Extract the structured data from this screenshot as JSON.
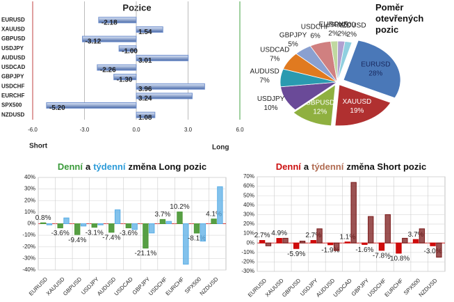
{
  "chart_data": [
    {
      "type": "hbar",
      "title": "Pozice",
      "categories": [
        "EURUSD",
        "XAUUSD",
        "GBPUSD",
        "USDJPY",
        "AUDUSD",
        "USDCAD",
        "GBPJPY",
        "USDCHF",
        "EURCHF",
        "SPX500",
        "NZDUSD"
      ],
      "values": [
        -2.18,
        1.54,
        -3.12,
        -1.0,
        3.01,
        -2.26,
        -1.3,
        3.96,
        3.24,
        -5.2,
        1.08
      ],
      "value_labels": [
        "-2.18",
        "1.54",
        "-3.12",
        "-1.00",
        "3.01",
        "-2.26",
        "-1.30",
        "3.96",
        "3.24",
        "-5.20",
        "1.08"
      ],
      "color": "#6f8fcc",
      "xlim": [
        -6,
        6
      ],
      "xticks": [
        {
          "value": -6,
          "label": "-6.0"
        },
        {
          "value": -3,
          "label": "-3.0"
        },
        {
          "value": 0,
          "label": "0.0"
        },
        {
          "value": 3,
          "label": "3.0"
        },
        {
          "value": 6,
          "label": "6.0"
        }
      ],
      "annotations": [
        "Short",
        "Long"
      ]
    },
    {
      "type": "pie",
      "title": "Poměr otevřených pozic",
      "categories": [
        "EURUSD",
        "XAUUSD",
        "GBPUSD",
        "USDJPY",
        "AUDUSD",
        "USDCAD",
        "GBPJPY",
        "USDCHF",
        "EURCHF",
        "SPX500",
        "NZDUSD"
      ],
      "values": [
        28,
        19,
        12,
        10,
        7,
        7,
        5,
        6,
        2,
        2,
        2
      ],
      "value_labels": [
        "28%",
        "19%",
        "12%",
        "10%",
        "7%",
        "7%",
        "5%",
        "6%",
        "2%",
        "2%",
        "2%"
      ],
      "colors": [
        "#4a78b8",
        "#b03030",
        "#8fb040",
        "#6a4a98",
        "#2a9ab0",
        "#e07a20",
        "#8aa0d0",
        "#d08080",
        "#c0d8a0",
        "#b0a0d0",
        "#90d0e0"
      ]
    },
    {
      "type": "bar",
      "title": [
        "Denní",
        "a",
        "týdenní",
        "změna Long pozic"
      ],
      "title_colors": [
        "#3a9a3a",
        "#111",
        "#2a9ad8",
        "#111"
      ],
      "categories": [
        "EURUSD",
        "XAUUSD",
        "GBPUSD",
        "USDJPY",
        "AUDUSD",
        "USDCAD",
        "GBPJPY",
        "USDCHF",
        "EURCHF",
        "SPX500",
        "NZDUSD"
      ],
      "series": [
        {
          "color": "#4e9a3a",
          "values": [
            0.8,
            -3.6,
            -9.4,
            -3.1,
            -7.4,
            -3.6,
            -21.1,
            3.7,
            10.2,
            -8.1,
            4.1
          ],
          "value_labels": [
            "0.8%",
            "-3.6%",
            "-9.4%",
            "-3.1%",
            "-7.4%",
            "-3.6%",
            "-21.1%",
            "3.7%",
            "10.2%",
            "-8.1%",
            "4.1%"
          ]
        },
        {
          "color": "#5aaee6",
          "values": [
            -1,
            5,
            -2,
            -1,
            12,
            -5,
            -8,
            2,
            -35,
            -15,
            32
          ]
        }
      ],
      "ylim": [
        -40,
        40
      ],
      "yticks": [
        {
          "value": -40,
          "label": "-40%"
        },
        {
          "value": -30,
          "label": "-30%"
        },
        {
          "value": -20,
          "label": "-20%"
        },
        {
          "value": -10,
          "label": "-10%"
        },
        {
          "value": 0,
          "label": "0%"
        },
        {
          "value": 10,
          "label": "10%"
        },
        {
          "value": 20,
          "label": "20%"
        },
        {
          "value": 30,
          "label": "30%"
        },
        {
          "value": 40,
          "label": "40%"
        }
      ]
    },
    {
      "type": "bar",
      "title": [
        "Denní",
        "a",
        "týdenní",
        "změna Short pozic"
      ],
      "title_colors": [
        "#cc1010",
        "#111",
        "#b06a50",
        "#111"
      ],
      "categories": [
        "EURUSD",
        "XAUUSD",
        "GBPUSD",
        "USDJPY",
        "AUDUSD",
        "USDCAD",
        "GBPJPY",
        "USDCHF",
        "EURCHF",
        "SPX500",
        "NZDUSD"
      ],
      "series": [
        {
          "color": "#cc0000",
          "values": [
            2.7,
            4.9,
            -5.9,
            2.7,
            -1.9,
            1.1,
            -1.6,
            -7.8,
            -10.8,
            3.7,
            -3.0
          ],
          "value_labels": [
            "2.7%",
            "4.9%",
            "-5.9%",
            "2.7%",
            "-1.9%",
            "1.1%",
            "-1.6%",
            "-7.8%",
            "-10.8%",
            "3.7%",
            "-3.0%"
          ]
        },
        {
          "color": "#7a1a1a",
          "values": [
            -3,
            5,
            2,
            15,
            -8,
            64,
            28,
            30,
            5,
            15,
            -15
          ]
        }
      ],
      "ylim": [
        -30,
        70
      ],
      "yticks": [
        {
          "value": -30,
          "label": "-30%"
        },
        {
          "value": -20,
          "label": "-20%"
        },
        {
          "value": -10,
          "label": "-10%"
        },
        {
          "value": 0,
          "label": "0%"
        },
        {
          "value": 10,
          "label": "10%"
        },
        {
          "value": 20,
          "label": "20%"
        },
        {
          "value": 30,
          "label": "30%"
        },
        {
          "value": 40,
          "label": "40%"
        },
        {
          "value": 50,
          "label": "50%"
        },
        {
          "value": 60,
          "label": "60%"
        },
        {
          "value": 70,
          "label": "70%"
        }
      ]
    }
  ]
}
